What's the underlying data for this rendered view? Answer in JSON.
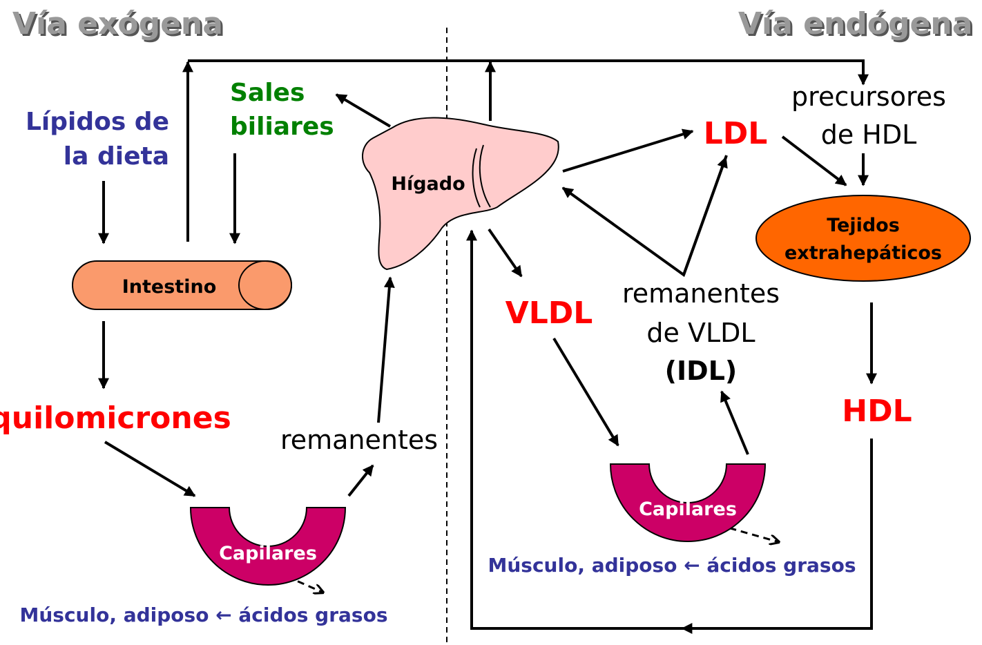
{
  "headers": {
    "left": "Vía exógena",
    "right": "Vía endógena"
  },
  "dietary_lipids": [
    "Lípidos de",
    "la dieta"
  ],
  "bile_salts": [
    "Sales",
    "biliares"
  ],
  "liver": "Hígado",
  "intestine": "Intestino",
  "chylomicrons": "quilomicrones",
  "remnants": "remanentes",
  "capillaries_left": "Capilares",
  "fatty_acids_left": "Músculo, adiposo ← ácidos grasos",
  "vldl": "VLDL",
  "ldl": "LDL",
  "hdl_precursors": [
    "precursores",
    "de HDL"
  ],
  "tissues": [
    "Tejidos",
    "extrahepáticos"
  ],
  "vldl_remnants": [
    "remanentes",
    "de VLDL",
    "(IDL)"
  ],
  "hdl": "HDL",
  "capillaries_right": "Capilares",
  "fatty_acids_right": "Músculo, adiposo ← ácidos grasos"
}
